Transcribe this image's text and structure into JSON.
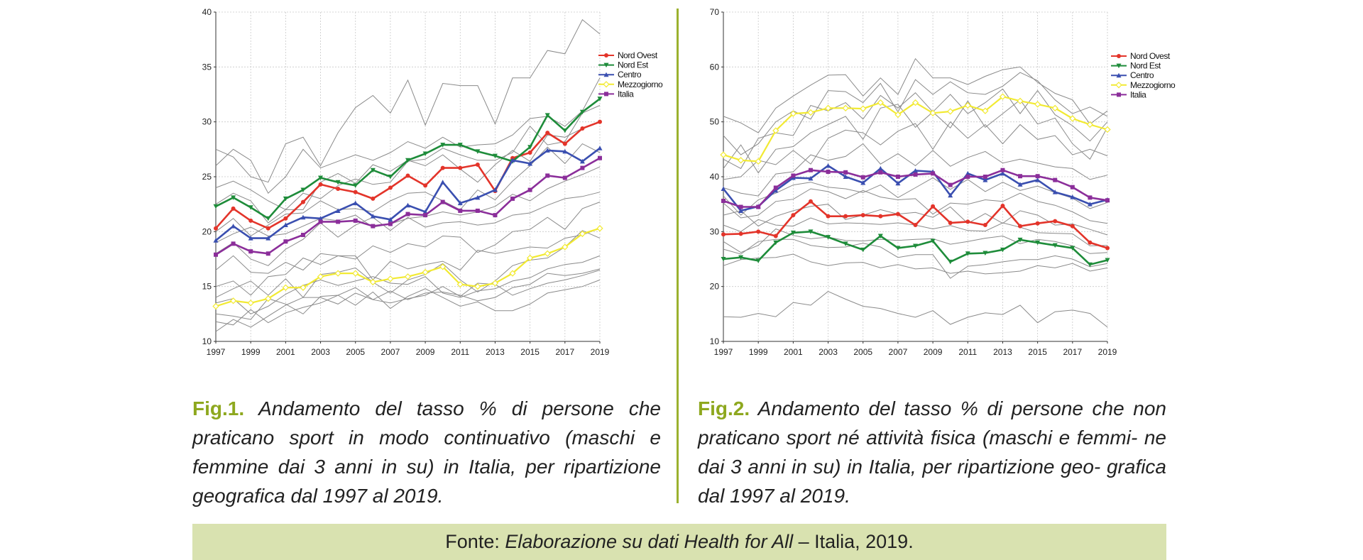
{
  "colors": {
    "nord_ovest": "#e3342a",
    "nord_est": "#1e8c3a",
    "centro": "#3a4fb0",
    "mezzogiorno": "#f2ea32",
    "italia": "#8b2e9a",
    "regions": "#8a8a8a",
    "accent": "#8ea81f",
    "source_bg": "#d9e2b0"
  },
  "chart_data": [
    {
      "type": "line",
      "x": [
        1997,
        1998,
        1999,
        2000,
        2001,
        2002,
        2003,
        2004,
        2005,
        2006,
        2007,
        2008,
        2009,
        2010,
        2011,
        2012,
        2013,
        2014,
        2015,
        2016,
        2017,
        2018,
        2019
      ],
      "xticks": [
        "1997",
        "1999",
        "2001",
        "2003",
        "2005",
        "2007",
        "2009",
        "2011",
        "2013",
        "2015",
        "2017",
        "2019"
      ],
      "ylim": [
        10,
        40
      ],
      "yticks": [
        "10",
        "15",
        "20",
        "25",
        "30",
        "35",
        "40"
      ],
      "grid": true,
      "legend_position": "top-right",
      "series": [
        {
          "name": "Nord Ovest",
          "color": "#e3342a",
          "values": [
            20.3,
            22.1,
            21.0,
            20.3,
            21.2,
            22.7,
            24.3,
            23.9,
            23.6,
            23.0,
            24.0,
            25.1,
            24.2,
            25.8,
            25.8,
            26.1,
            23.7,
            26.7,
            27.2,
            29.0,
            28.0,
            29.4,
            30.0
          ]
        },
        {
          "name": "Nord Est",
          "color": "#1e8c3a",
          "values": [
            22.3,
            23.1,
            22.2,
            21.2,
            23.0,
            23.8,
            24.9,
            24.5,
            24.2,
            25.6,
            25.0,
            26.5,
            27.1,
            27.9,
            27.9,
            27.3,
            26.9,
            26.4,
            27.7,
            30.6,
            29.2,
            30.9,
            32.1
          ]
        },
        {
          "name": "Centro",
          "color": "#3a4fb0",
          "values": [
            19.2,
            20.5,
            19.4,
            19.4,
            20.6,
            21.3,
            21.2,
            21.9,
            22.6,
            21.4,
            21.1,
            22.4,
            21.8,
            24.5,
            22.6,
            23.1,
            23.8,
            26.5,
            26.2,
            27.4,
            27.3,
            26.4,
            27.6
          ]
        },
        {
          "name": "Mezzogiorno",
          "color": "#f2ea32",
          "values": [
            13.2,
            13.7,
            13.5,
            13.9,
            14.9,
            14.9,
            15.9,
            16.2,
            16.2,
            15.4,
            15.7,
            15.9,
            16.3,
            16.8,
            15.2,
            15.0,
            15.3,
            16.2,
            17.6,
            18.0,
            18.6,
            19.8,
            20.3
          ]
        },
        {
          "name": "Italia",
          "color": "#8b2e9a",
          "values": [
            17.9,
            18.9,
            18.2,
            18.0,
            19.1,
            19.7,
            20.9,
            20.9,
            21.0,
            20.5,
            20.7,
            21.6,
            21.5,
            22.7,
            21.9,
            21.9,
            21.5,
            23.0,
            23.8,
            25.1,
            24.9,
            25.8,
            26.7
          ]
        }
      ],
      "background_series": [
        [
          27.5,
          26.8,
          25.0,
          24.5,
          28.0,
          28.6,
          26.0,
          29.0,
          31.3,
          32.4,
          30.8,
          33.8,
          29.7,
          33.5,
          33.3,
          33.3,
          29.8,
          34.0,
          34.0,
          36.5,
          36.2,
          39.3,
          38.0
        ],
        [
          26.0,
          27.5,
          26.5,
          23.5,
          25.0,
          27.5,
          25.8,
          26.4,
          27.0,
          26.5,
          27.2,
          28.2,
          27.6,
          28.6,
          27.7,
          27.9,
          28.0,
          28.8,
          30.3,
          30.5,
          29.6,
          31.0,
          34.0
        ],
        [
          24.0,
          24.6,
          23.8,
          22.8,
          22.0,
          23.5,
          23.0,
          24.2,
          24.8,
          24.3,
          24.5,
          26.4,
          26.6,
          27.6,
          27.0,
          26.5,
          26.5,
          27.2,
          29.6,
          27.9,
          28.2,
          30.8,
          31.5
        ],
        [
          22.5,
          23.5,
          22.8,
          20.8,
          22.0,
          22.0,
          24.5,
          25.3,
          24.4,
          26.1,
          25.5,
          26.5,
          26.0,
          27.0,
          25.7,
          24.5,
          26.1,
          27.4,
          26.4,
          28.8,
          28.6,
          29.4,
          30.0
        ],
        [
          20.0,
          21.2,
          19.6,
          20.6,
          21.6,
          21.7,
          22.8,
          22.0,
          22.1,
          21.8,
          22.8,
          23.5,
          23.6,
          22.8,
          22.0,
          23.8,
          22.9,
          24.6,
          26.0,
          27.7,
          26.2,
          28.0,
          27.2
        ],
        [
          19.0,
          19.8,
          20.4,
          19.6,
          19.8,
          20.5,
          21.2,
          21.0,
          21.5,
          20.4,
          20.7,
          21.2,
          21.4,
          21.8,
          21.5,
          21.8,
          22.3,
          23.4,
          22.8,
          23.9,
          24.6,
          25.2,
          25.9
        ],
        [
          18.0,
          19.0,
          17.5,
          16.9,
          18.4,
          19.3,
          20.8,
          19.5,
          20.6,
          21.3,
          20.1,
          21.3,
          20.4,
          20.8,
          20.9,
          20.6,
          20.8,
          21.5,
          21.7,
          22.4,
          23.0,
          23.2,
          23.6
        ],
        [
          16.5,
          17.8,
          16.3,
          16.2,
          17.2,
          16.5,
          18.0,
          17.8,
          17.5,
          18.7,
          18.1,
          18.9,
          18.6,
          19.6,
          19.5,
          18.1,
          18.8,
          20.0,
          20.2,
          21.3,
          20.2,
          22.1,
          22.7
        ],
        [
          15.0,
          15.5,
          14.2,
          15.9,
          16.1,
          17.6,
          17.0,
          17.8,
          17.8,
          15.6,
          17.3,
          16.6,
          17.0,
          17.3,
          16.5,
          18.3,
          18.0,
          18.3,
          18.6,
          18.5,
          19.4,
          19.7,
          20.3
        ],
        [
          14.0,
          14.8,
          15.5,
          14.2,
          15.7,
          14.0,
          16.1,
          16.3,
          16.7,
          15.4,
          14.4,
          15.6,
          16.1,
          17.1,
          15.6,
          14.5,
          15.5,
          16.9,
          17.4,
          17.6,
          18.6,
          20.1,
          19.4
        ],
        [
          13.5,
          13.9,
          12.5,
          13.2,
          14.3,
          15.1,
          15.6,
          15.1,
          15.5,
          15.9,
          15.3,
          15.2,
          15.9,
          14.4,
          14.0,
          14.6,
          14.8,
          15.5,
          15.8,
          16.6,
          17.0,
          17.2,
          17.8
        ],
        [
          12.5,
          12.3,
          12.0,
          13.9,
          13.4,
          12.5,
          14.1,
          14.2,
          14.9,
          13.8,
          14.6,
          13.8,
          14.4,
          14.5,
          14.2,
          13.7,
          14.0,
          14.9,
          15.2,
          16.2,
          16.0,
          16.2,
          16.6
        ],
        [
          11.8,
          11.5,
          12.9,
          11.7,
          12.6,
          13.1,
          13.5,
          14.2,
          13.3,
          14.5,
          13.0,
          14.1,
          14.8,
          14.0,
          13.2,
          13.6,
          12.8,
          12.8,
          13.4,
          14.4,
          14.7,
          15.0,
          15.6
        ],
        [
          10.9,
          12.0,
          11.3,
          12.3,
          13.3,
          14.0,
          14.0,
          13.4,
          14.4,
          13.8,
          13.5,
          13.9,
          14.2,
          15.0,
          14.1,
          15.3,
          15.2,
          14.2,
          14.8,
          15.3,
          15.6,
          16.0,
          16.5
        ]
      ]
    },
    {
      "type": "line",
      "x": [
        1997,
        1998,
        1999,
        2000,
        2001,
        2002,
        2003,
        2004,
        2005,
        2006,
        2007,
        2008,
        2009,
        2010,
        2011,
        2012,
        2013,
        2014,
        2015,
        2016,
        2017,
        2018,
        2019
      ],
      "xticks": [
        "1997",
        "1999",
        "2001",
        "2003",
        "2005",
        "2007",
        "2009",
        "2011",
        "2013",
        "2015",
        "2017",
        "2019"
      ],
      "ylim": [
        10,
        70
      ],
      "yticks": [
        "10",
        "20",
        "30",
        "40",
        "50",
        "60",
        "70"
      ],
      "grid": true,
      "legend_position": "top-right",
      "series": [
        {
          "name": "Nord Ovest",
          "color": "#e3342a",
          "values": [
            29.5,
            29.6,
            30.0,
            29.2,
            33.0,
            35.5,
            32.8,
            32.8,
            33.0,
            32.8,
            33.2,
            31.2,
            34.6,
            31.6,
            31.8,
            31.2,
            34.7,
            31.0,
            31.5,
            31.9,
            31.0,
            28.0,
            27.0
          ]
        },
        {
          "name": "Nord Est",
          "color": "#1e8c3a",
          "values": [
            25.0,
            25.3,
            24.7,
            28.0,
            29.8,
            30.0,
            29.0,
            27.8,
            26.7,
            29.2,
            27.0,
            27.4,
            28.3,
            24.5,
            26.0,
            26.1,
            26.7,
            28.5,
            28.0,
            27.5,
            27.0,
            24.0,
            24.8
          ]
        },
        {
          "name": "Centro",
          "color": "#3a4fb0",
          "values": [
            37.8,
            33.8,
            34.6,
            37.5,
            39.8,
            39.7,
            42.0,
            40.0,
            38.9,
            41.5,
            38.8,
            41.1,
            40.9,
            36.6,
            40.6,
            39.4,
            40.6,
            38.6,
            39.4,
            37.2,
            36.3,
            35.0,
            35.8
          ]
        },
        {
          "name": "Mezzogiorno",
          "color": "#f2ea32",
          "values": [
            44.0,
            43.0,
            42.8,
            48.4,
            51.5,
            51.7,
            52.5,
            52.5,
            52.4,
            53.5,
            51.3,
            53.5,
            51.6,
            51.9,
            53.0,
            52.0,
            54.6,
            53.8,
            53.2,
            52.5,
            50.6,
            49.5,
            48.6
          ]
        },
        {
          "name": "Italia",
          "color": "#8b2e9a",
          "values": [
            35.6,
            34.5,
            34.5,
            38.0,
            40.2,
            41.2,
            40.9,
            40.8,
            39.9,
            40.8,
            40.0,
            40.4,
            40.6,
            38.5,
            40.0,
            40.0,
            41.2,
            40.1,
            40.1,
            39.4,
            38.1,
            36.2,
            35.7
          ]
        }
      ],
      "background_series": [
        [
          51.0,
          49.8,
          48.0,
          52.5,
          54.7,
          56.7,
          58.5,
          58.6,
          54.7,
          58.0,
          55.0,
          61.5,
          58.0,
          58.0,
          56.8,
          58.3,
          59.5,
          60.0,
          57.2,
          55.2,
          54.0,
          49.6,
          52.0
        ],
        [
          47.5,
          44.0,
          46.0,
          50.0,
          52.0,
          50.5,
          55.7,
          55.5,
          53.5,
          57.0,
          51.8,
          57.7,
          55.0,
          57.3,
          55.3,
          55.0,
          56.5,
          59.0,
          57.5,
          54.0,
          51.5,
          52.7,
          51.0
        ],
        [
          43.2,
          41.5,
          47.0,
          48.0,
          47.5,
          53.0,
          52.0,
          53.5,
          50.5,
          54.8,
          52.5,
          55.3,
          51.8,
          55.0,
          51.5,
          53.5,
          56.0,
          51.5,
          55.7,
          51.3,
          49.3,
          46.5,
          50.0
        ],
        [
          41.5,
          45.8,
          40.7,
          45.0,
          45.5,
          48.0,
          49.5,
          51.0,
          46.8,
          52.5,
          53.2,
          49.0,
          51.8,
          48.9,
          53.8,
          49.0,
          51.5,
          54.0,
          49.6,
          50.7,
          46.0,
          43.2,
          49.0
        ],
        [
          39.5,
          40.0,
          43.0,
          42.2,
          44.8,
          42.3,
          47.0,
          48.5,
          48.0,
          45.8,
          48.3,
          49.7,
          45.0,
          50.0,
          47.0,
          49.5,
          46.0,
          49.5,
          46.8,
          47.5,
          44.0,
          45.0,
          43.8
        ],
        [
          38.0,
          37.0,
          36.5,
          40.5,
          40.9,
          44.0,
          43.0,
          43.7,
          46.0,
          42.3,
          44.2,
          42.0,
          44.8,
          41.9,
          43.5,
          44.6,
          42.5,
          43.2,
          42.5,
          41.8,
          41.5,
          39.5,
          40.3
        ],
        [
          36.5,
          33.0,
          35.8,
          37.0,
          38.5,
          39.0,
          38.1,
          37.8,
          37.1,
          38.5,
          36.2,
          38.0,
          39.8,
          37.7,
          39.5,
          37.3,
          39.0,
          37.5,
          38.3,
          37.1,
          36.1,
          34.2,
          35.3
        ],
        [
          35.2,
          32.5,
          33.0,
          35.5,
          35.9,
          37.8,
          37.3,
          36.0,
          37.5,
          36.3,
          35.8,
          36.0,
          33.2,
          35.2,
          35.0,
          35.8,
          35.5,
          37.0,
          35.5,
          34.8,
          33.6,
          32.0,
          31.5
        ],
        [
          33.0,
          33.8,
          31.0,
          32.8,
          33.8,
          34.6,
          35.0,
          32.2,
          33.0,
          34.0,
          33.2,
          33.5,
          32.6,
          34.5,
          31.5,
          33.3,
          31.5,
          33.8,
          33.0,
          31.2,
          31.4,
          30.4,
          29.4
        ],
        [
          31.2,
          30.0,
          32.2,
          31.2,
          31.0,
          32.5,
          31.4,
          31.6,
          31.5,
          31.3,
          31.6,
          31.2,
          30.5,
          31.1,
          30.2,
          30.1,
          31.6,
          30.8,
          29.8,
          29.7,
          29.6,
          27.4,
          27.5
        ],
        [
          28.2,
          26.2,
          27.5,
          30.5,
          29.3,
          28.7,
          29.0,
          28.4,
          28.3,
          28.6,
          28.4,
          28.6,
          28.7,
          27.7,
          28.2,
          28.8,
          29.2,
          27.8,
          28.6,
          28.2,
          27.4,
          26.0,
          26.2
        ],
        [
          26.8,
          25.9,
          28.2,
          28.6,
          28.6,
          27.5,
          27.1,
          27.2,
          27.9,
          27.2,
          25.3,
          25.8,
          25.8,
          21.5,
          23.7,
          24.0,
          24.5,
          24.9,
          24.9,
          25.6,
          25.0,
          23.6,
          24.2
        ],
        [
          23.8,
          24.9,
          25.2,
          25.3,
          25.9,
          24.5,
          23.8,
          24.3,
          24.4,
          23.4,
          24.0,
          23.2,
          23.4,
          22.4,
          22.8,
          22.3,
          22.5,
          22.8,
          23.8,
          23.4,
          24.2,
          22.8,
          23.4
        ],
        [
          14.5,
          14.4,
          15.1,
          14.5,
          17.1,
          16.6,
          19.1,
          17.7,
          16.4,
          16.0,
          15.1,
          14.4,
          15.6,
          13.1,
          14.4,
          15.2,
          14.9,
          16.6,
          13.4,
          15.4,
          15.7,
          15.1,
          12.6
        ]
      ]
    }
  ],
  "fig1": {
    "label": "Fig.1.",
    "text": "Andamento del tasso % di persone che praticano sport in modo continuativo (maschi e femmine dai 3 anni in su) in Italia, per ripartizione geografica dal 1997 al 2019."
  },
  "fig2": {
    "label": "Fig.2.",
    "text": "Andamento del tasso % di persone che non praticano sport né attività fisica (maschi e femmi- ne dai 3 anni in su) in Italia, per ripartizione geo- grafica dal 1997 al 2019."
  },
  "source": {
    "prefix": "Fonte: ",
    "italic": "Elaborazione su dati Health for All",
    "suffix": " – Italia, 2019."
  }
}
